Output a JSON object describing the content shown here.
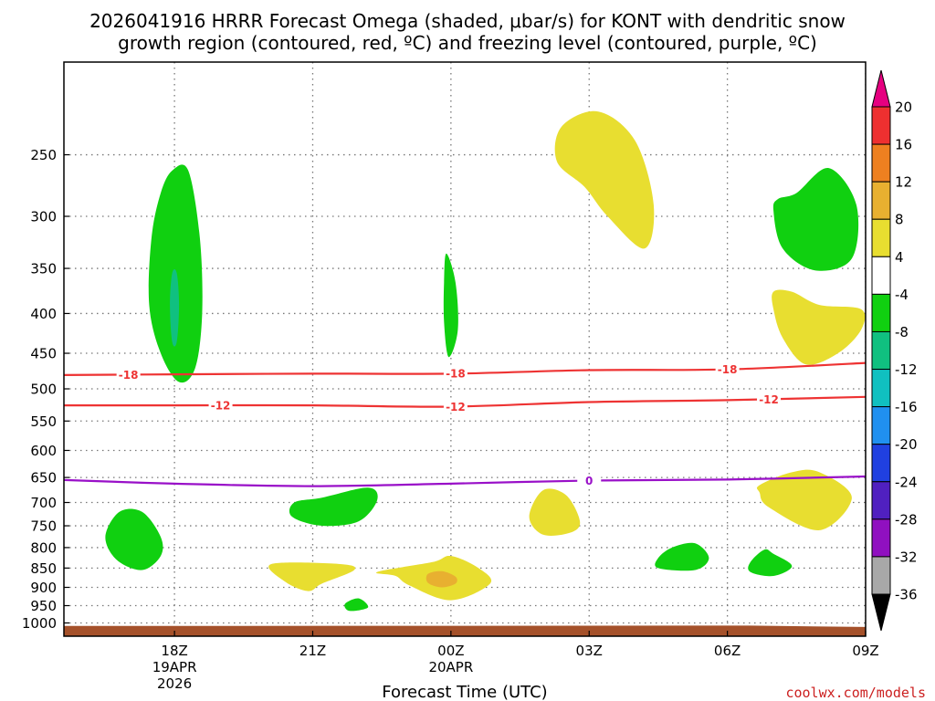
{
  "chart_data": {
    "type": "time-height-contour",
    "title_lines": [
      "2026041916 HRRR Forecast Omega (shaded, μbar/s) for KONT with dendritic snow",
      "growth region (contoured, red, ºC) and freezing level (contoured, purple, ºC)"
    ],
    "xlabel": "Forecast Time (UTC)",
    "ylabel": "",
    "credit": "coolwx.com/models",
    "x_range_hours": [
      -2.4,
      15.0
    ],
    "y_range_mb": [
      1040,
      190
    ],
    "x_ticks": [
      {
        "hour": 0,
        "lines": [
          "18Z",
          "19APR",
          "2026"
        ]
      },
      {
        "hour": 3,
        "lines": [
          "21Z"
        ]
      },
      {
        "hour": 6,
        "lines": [
          "00Z",
          "20APR"
        ]
      },
      {
        "hour": 9,
        "lines": [
          "03Z"
        ]
      },
      {
        "hour": 12,
        "lines": [
          "06Z"
        ]
      },
      {
        "hour": 15,
        "lines": [
          "09Z"
        ]
      }
    ],
    "y_ticks": [
      250,
      300,
      350,
      400,
      450,
      500,
      550,
      600,
      650,
      700,
      750,
      800,
      850,
      900,
      950,
      1000
    ],
    "colorbar": {
      "levels": [
        "20",
        "16",
        "12",
        "8",
        "4",
        "-4",
        "-8",
        "-12",
        "-16",
        "-20",
        "-24",
        "-28",
        "-32",
        "-36"
      ],
      "colors": [
        "#e60080",
        "#ee3030",
        "#ee8020",
        "#e8b030",
        "#e8de30",
        "#ffffff",
        "#10d010",
        "#10c080",
        "#10c0c0",
        "#2090f0",
        "#2040e0",
        "#5020c0",
        "#9010c0",
        "#a8a8a8",
        "#000000"
      ]
    },
    "omega_regions": [
      {
        "class": "-4 to -8",
        "color": "#10d010",
        "points": [
          [
            -0.05,
            262
          ],
          [
            0.3,
            262
          ],
          [
            0.55,
            320
          ],
          [
            0.6,
            400
          ],
          [
            0.45,
            470
          ],
          [
            0.1,
            490
          ],
          [
            -0.3,
            450
          ],
          [
            -0.55,
            390
          ],
          [
            -0.5,
            320
          ],
          [
            -0.3,
            280
          ]
        ]
      },
      {
        "class": "-8 to -12",
        "color": "#10c080",
        "points": [
          [
            -0.05,
            355
          ],
          [
            0.05,
            355
          ],
          [
            0.1,
            390
          ],
          [
            0.05,
            435
          ],
          [
            -0.05,
            435
          ],
          [
            -0.1,
            390
          ]
        ]
      },
      {
        "class": "-4 to -8",
        "color": "#10d010",
        "points": [
          [
            -1.2,
            720
          ],
          [
            -0.7,
            720
          ],
          [
            -0.3,
            775
          ],
          [
            -0.3,
            820
          ],
          [
            -0.7,
            855
          ],
          [
            -1.25,
            830
          ],
          [
            -1.5,
            775
          ]
        ]
      },
      {
        "class": "-4 to -8",
        "color": "#10d010",
        "points": [
          [
            5.9,
            335
          ],
          [
            6.1,
            365
          ],
          [
            6.15,
            420
          ],
          [
            5.95,
            455
          ],
          [
            5.85,
            410
          ],
          [
            5.85,
            365
          ]
        ]
      },
      {
        "class": "-4 to -8",
        "color": "#10d010",
        "points": [
          [
            2.6,
            700
          ],
          [
            3.2,
            690
          ],
          [
            4.2,
            670
          ],
          [
            4.4,
            695
          ],
          [
            4.0,
            740
          ],
          [
            3.2,
            750
          ],
          [
            2.55,
            730
          ]
        ]
      },
      {
        "class": "-4 to -8",
        "color": "#10d010",
        "points": [
          [
            3.7,
            945
          ],
          [
            4.0,
            930
          ],
          [
            4.2,
            955
          ],
          [
            3.8,
            965
          ]
        ]
      },
      {
        "class": "-4 to -8",
        "color": "#10d010",
        "points": [
          [
            10.8,
            800
          ],
          [
            11.3,
            790
          ],
          [
            11.6,
            825
          ],
          [
            11.3,
            855
          ],
          [
            10.5,
            850
          ],
          [
            10.5,
            825
          ]
        ]
      },
      {
        "class": "-4 to -8",
        "color": "#10d010",
        "points": [
          [
            12.8,
            805
          ],
          [
            13.0,
            815
          ],
          [
            13.4,
            845
          ],
          [
            13.0,
            870
          ],
          [
            12.5,
            860
          ],
          [
            12.5,
            835
          ]
        ]
      },
      {
        "class": "-4 to -8",
        "color": "#10d010",
        "points": [
          [
            13.5,
            280
          ],
          [
            14.2,
            260
          ],
          [
            14.8,
            290
          ],
          [
            14.7,
            340
          ],
          [
            13.9,
            352
          ],
          [
            13.2,
            330
          ],
          [
            13.0,
            295
          ],
          [
            13.1,
            285
          ]
        ]
      },
      {
        "class": "4 to 8",
        "color": "#e8de30",
        "points": [
          [
            8.4,
            230
          ],
          [
            9.2,
            220
          ],
          [
            10.0,
            240
          ],
          [
            10.4,
            290
          ],
          [
            10.2,
            330
          ],
          [
            9.4,
            300
          ],
          [
            8.9,
            275
          ],
          [
            8.3,
            255
          ]
        ]
      },
      {
        "class": "4 to 8",
        "color": "#e8de30",
        "points": [
          [
            13.4,
            375
          ],
          [
            14.0,
            390
          ],
          [
            14.9,
            395
          ],
          [
            14.9,
            420
          ],
          [
            14.4,
            450
          ],
          [
            13.7,
            465
          ],
          [
            13.2,
            430
          ],
          [
            13.0,
            395
          ],
          [
            13.0,
            375
          ]
        ]
      },
      {
        "class": "4 to 8",
        "color": "#e8de30",
        "points": [
          [
            12.7,
            665
          ],
          [
            13.4,
            640
          ],
          [
            14.0,
            640
          ],
          [
            14.7,
            690
          ],
          [
            14.0,
            760
          ],
          [
            12.9,
            710
          ],
          [
            12.7,
            680
          ]
        ]
      },
      {
        "class": "4 to 8",
        "color": "#e8de30",
        "points": [
          [
            8.0,
            675
          ],
          [
            8.5,
            685
          ],
          [
            8.8,
            740
          ],
          [
            8.6,
            765
          ],
          [
            8.0,
            770
          ],
          [
            7.7,
            730
          ]
        ]
      },
      {
        "class": "4 to 8",
        "color": "#e8de30",
        "points": [
          [
            2.1,
            840
          ],
          [
            3.6,
            840
          ],
          [
            3.9,
            855
          ],
          [
            3.2,
            890
          ],
          [
            2.9,
            910
          ],
          [
            2.4,
            885
          ]
        ]
      },
      {
        "class": "4 to 8",
        "color": "#e8de30",
        "points": [
          [
            4.4,
            860
          ],
          [
            5.6,
            835
          ],
          [
            6.0,
            820
          ],
          [
            6.6,
            850
          ],
          [
            6.85,
            890
          ],
          [
            6.0,
            935
          ],
          [
            5.1,
            895
          ],
          [
            4.8,
            870
          ]
        ]
      },
      {
        "class": "8 to 12",
        "color": "#e8b030",
        "points": [
          [
            5.5,
            865
          ],
          [
            5.8,
            858
          ],
          [
            6.1,
            872
          ],
          [
            6.1,
            890
          ],
          [
            5.8,
            900
          ],
          [
            5.5,
            888
          ]
        ]
      }
    ],
    "contours": [
      {
        "label": "-18",
        "color": "#ee3333",
        "x": [
          -2.4,
          0,
          3,
          6,
          9,
          12,
          15
        ],
        "y_mb": [
          480,
          479,
          478,
          478,
          473,
          472,
          463
        ],
        "label_hours": [
          -1.0,
          6.1,
          12.0
        ]
      },
      {
        "label": "-12",
        "color": "#ee3333",
        "x": [
          -2.4,
          0,
          3,
          6,
          9,
          12,
          15
        ],
        "y_mb": [
          525,
          525,
          525,
          527,
          520,
          517,
          512
        ],
        "label_hours": [
          1.0,
          6.1,
          12.9
        ]
      },
      {
        "label": "0",
        "color": "#9910c8",
        "x": [
          -2.4,
          0,
          3,
          6,
          9,
          12,
          15
        ],
        "y_mb": [
          655,
          662,
          667,
          662,
          656,
          654,
          648
        ],
        "label_hours": [
          9.0
        ]
      }
    ],
    "terrain": {
      "color": "#a5512a",
      "x": [
        -2.4,
        12.5,
        15
      ],
      "y_mb": [
        1009,
        1008,
        1012
      ]
    }
  }
}
